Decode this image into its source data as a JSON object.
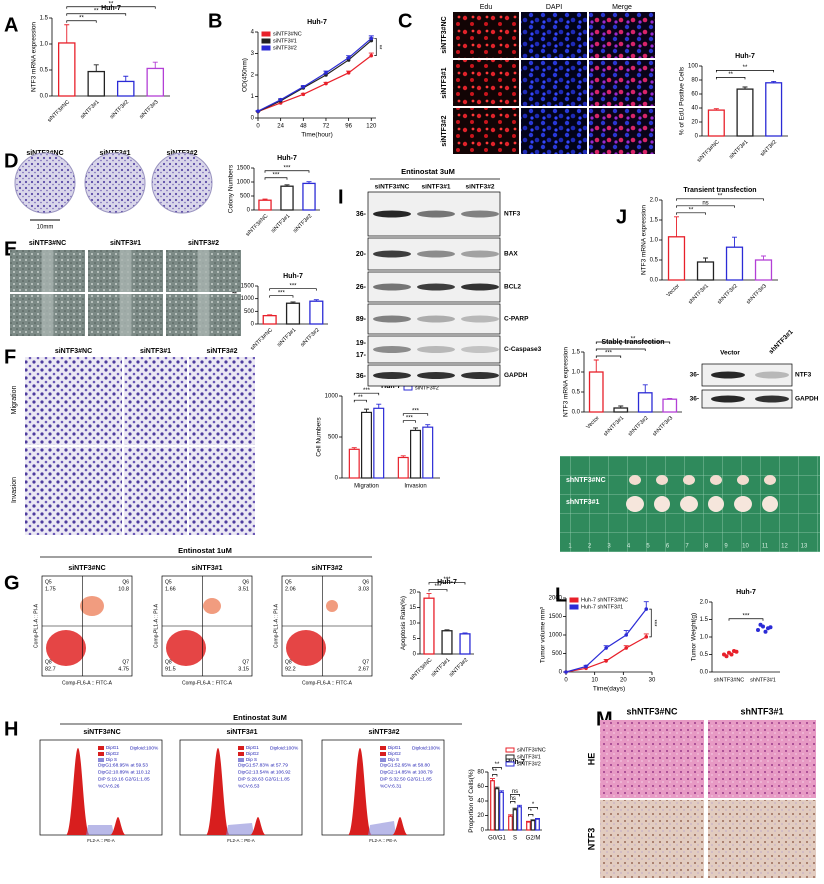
{
  "chart_data": [
    {
      "type": "bar",
      "title": "Huh-7",
      "y_label": "NTF3 mRNA expression",
      "categories": [
        "siNTF3#NC",
        "siNTF3#1",
        "siNTF3#2",
        "siNTF3#3"
      ],
      "values": [
        1.02,
        0.47,
        0.28,
        0.53
      ],
      "errors": [
        0.35,
        0.13,
        0.1,
        0.12
      ],
      "colors": [
        "#e8202a",
        "#222222",
        "#2b2bd6",
        "#b33fd6"
      ],
      "ylim": [
        0,
        1.5
      ],
      "yticks": [
        {
          "value": 0,
          "label": "0.0"
        },
        {
          "value": 0.5,
          "label": "0.5"
        },
        {
          "value": 1,
          "label": "1.0"
        },
        {
          "value": 1.5,
          "label": "1.5"
        }
      ],
      "annotations": [
        "**",
        "**",
        "**"
      ]
    },
    {
      "type": "line",
      "title": "Huh-7",
      "y_label": "OD(450nm)",
      "x_label": "Time(hour)",
      "x": [
        0,
        24,
        48,
        72,
        96,
        120
      ],
      "xlim": [
        0,
        125
      ],
      "xticks": [
        0,
        24,
        48,
        72,
        96,
        120
      ],
      "ylim": [
        0,
        4
      ],
      "yticks": [
        0,
        1,
        2,
        3,
        4
      ],
      "legend": "upper left",
      "series": [
        {
          "name": "siNTF3#NC",
          "color": "#e8202a",
          "values": [
            0.3,
            0.7,
            1.1,
            1.6,
            2.1,
            2.9
          ],
          "errors": [
            0.02,
            0.04,
            0.05,
            0.06,
            0.08,
            0.12
          ]
        },
        {
          "name": "siNTF3#1",
          "color": "#222222",
          "values": [
            0.3,
            0.8,
            1.4,
            2.0,
            2.7,
            3.6
          ],
          "errors": [
            0.02,
            0.05,
            0.06,
            0.08,
            0.1,
            0.12
          ]
        },
        {
          "name": "siNTF3#2",
          "color": "#2b2bd6",
          "values": [
            0.32,
            0.85,
            1.45,
            2.1,
            2.8,
            3.7
          ],
          "errors": [
            0.02,
            0.05,
            0.06,
            0.08,
            0.1,
            0.12
          ]
        }
      ],
      "annotations": [
        "**"
      ]
    },
    {
      "type": "bar",
      "title": "Huh-7",
      "y_label": "% of EdU Positive Cells",
      "categories": [
        "siNTF3#NC",
        "siNTF3#1",
        "siNT3#2"
      ],
      "values": [
        37,
        67,
        76
      ],
      "errors": [
        2,
        3,
        2
      ],
      "colors": [
        "#e8202a",
        "#222222",
        "#2b2bd6"
      ],
      "ylim": [
        0,
        100
      ],
      "yticks": [
        0,
        20,
        40,
        60,
        80,
        100
      ],
      "annotations": [
        "**",
        "**"
      ]
    },
    {
      "type": "bar",
      "title": "Huh-7",
      "y_label": "Colony Numbers",
      "categories": [
        "siNTF3#NC",
        "siNTF3#1",
        "siNTF3#2"
      ],
      "values": [
        350,
        850,
        950
      ],
      "errors": [
        40,
        50,
        60
      ],
      "colors": [
        "#e8202a",
        "#222222",
        "#2b2bd6"
      ],
      "ylim": [
        0,
        1500
      ],
      "yticks": [
        0,
        500,
        1000,
        1500
      ],
      "annotations": [
        "***",
        "***"
      ]
    },
    {
      "type": "bar",
      "title": "Huh-7",
      "y_label": "Colony Numbers",
      "categories": [
        "siNTF3#NC",
        "siNTF3#1",
        "siNTF3#2"
      ],
      "values": [
        330,
        820,
        900
      ],
      "errors": [
        30,
        50,
        60
      ],
      "colors": [
        "#e8202a",
        "#222222",
        "#2b2bd6"
      ],
      "ylim": [
        0,
        1500
      ],
      "yticks": [
        0,
        500,
        1000,
        1500
      ],
      "annotations": [
        "***",
        "***"
      ]
    },
    {
      "type": "bar",
      "title": "Huh-7",
      "y_label": "Cell Numbers",
      "categories": [
        "Migration",
        "Invasion"
      ],
      "legend": "upper right",
      "series": [
        {
          "name": "siNTF3#NC",
          "color": "#e8202a",
          "values": [
            350,
            250
          ],
          "errors": [
            20,
            20
          ]
        },
        {
          "name": "siNTF3#1",
          "color": "#222222",
          "values": [
            800,
            580
          ],
          "errors": [
            40,
            30
          ]
        },
        {
          "name": "siNTF3#2",
          "color": "#2b2bd6",
          "values": [
            850,
            620
          ],
          "errors": [
            50,
            30
          ]
        }
      ],
      "ylim": [
        0,
        1000
      ],
      "yticks": [
        0,
        500,
        1000
      ],
      "annotations": [
        [
          "**",
          "***"
        ],
        [
          "***",
          "***"
        ]
      ]
    },
    {
      "type": "bar",
      "title": "Huh-7",
      "y_label": "Apoptosis Rate(%)",
      "categories": [
        "siNTF3#NC",
        "siNTF3#1",
        "siNTF3#2"
      ],
      "values": [
        18,
        7.5,
        6.5
      ],
      "errors": [
        1.5,
        0.3,
        0.3
      ],
      "colors": [
        "#e8202a",
        "#222222",
        "#2b2bd6"
      ],
      "ylim": [
        0,
        20
      ],
      "yticks": [
        0,
        5,
        10,
        15,
        20
      ],
      "annotations": [
        "***",
        "***"
      ]
    },
    {
      "type": "bar",
      "title": "Huh-7",
      "y_label": "Proportion of Cells(%)",
      "categories": [
        "G0/G1",
        "S",
        "G2/M"
      ],
      "legend": "upper right",
      "series": [
        {
          "name": "siNTF3#NC",
          "color": "#e8202a",
          "values": [
            68,
            19,
            11
          ],
          "errors": [
            3,
            2,
            1
          ]
        },
        {
          "name": "siNTF3#1",
          "color": "#222222",
          "values": [
            57,
            28,
            13
          ],
          "errors": [
            2,
            2,
            1
          ]
        },
        {
          "name": "siNTF3#2",
          "color": "#2b2bd6",
          "values": [
            52,
            32,
            15
          ],
          "errors": [
            2,
            2,
            1
          ]
        }
      ],
      "ylim": [
        0,
        80
      ],
      "yticks": [
        0,
        20,
        40,
        60,
        80
      ],
      "annotations": [
        [
          "**",
          "**"
        ],
        [
          "ns",
          "ns"
        ],
        [
          "*",
          "*"
        ]
      ]
    },
    {
      "type": "bar",
      "title": "Transient transfection",
      "y_label": "NTF3 mRNA expression",
      "categories": [
        "Vector",
        "shNTF3#1",
        "shNTF3#2",
        "shNTF3#3"
      ],
      "values": [
        1.08,
        0.45,
        0.82,
        0.5
      ],
      "errors": [
        0.5,
        0.1,
        0.25,
        0.1
      ],
      "colors": [
        "#e8202a",
        "#222222",
        "#2b2bd6",
        "#b33fd6"
      ],
      "ylim": [
        0,
        2
      ],
      "yticks": [
        {
          "value": 0,
          "label": "0.0"
        },
        {
          "value": 0.5,
          "label": "0.5"
        },
        {
          "value": 1,
          "label": "1.0"
        },
        {
          "value": 1.5,
          "label": "1.5"
        },
        {
          "value": 2,
          "label": "2.0"
        }
      ],
      "annotations": [
        "**",
        "ns",
        "**"
      ]
    },
    {
      "type": "bar",
      "title": "Stable transfection",
      "y_label": "NTF3 mRNA expression",
      "categories": [
        "Vector",
        "shNTF3#1",
        "shNTF3#2",
        "shNTF3#3"
      ],
      "values": [
        1.0,
        0.1,
        0.48,
        0.32
      ],
      "errors": [
        0.3,
        0.05,
        0.2,
        0.02
      ],
      "colors": [
        "#e8202a",
        "#222222",
        "#2b2bd6",
        "#b33fd6"
      ],
      "ylim": [
        0,
        1.5
      ],
      "yticks": [
        {
          "value": 0,
          "label": "0.0"
        },
        {
          "value": 0.5,
          "label": "0.5"
        },
        {
          "value": 1,
          "label": "1.0"
        },
        {
          "value": 1.5,
          "label": "1.5"
        }
      ],
      "annotations": [
        "***",
        "*",
        "**"
      ]
    },
    {
      "type": "line",
      "y_label": "Tumor volume mm³",
      "x_label": "Time(days)",
      "x": [
        0,
        7,
        14,
        21,
        28
      ],
      "xlim": [
        0,
        30
      ],
      "xticks": [
        0,
        10,
        20,
        30
      ],
      "ylim": [
        0,
        2000
      ],
      "yticks": [
        0,
        500,
        1000,
        1500,
        2000
      ],
      "legend": "upper left",
      "series": [
        {
          "name": "Huh-7 shNTF3#NC",
          "color": "#e8202a",
          "values": [
            0,
            100,
            300,
            650,
            950
          ],
          "errors": [
            0,
            20,
            40,
            60,
            80
          ]
        },
        {
          "name": "Huh-7 shNTF3#1",
          "color": "#2b2bd6",
          "values": [
            0,
            150,
            650,
            1000,
            1700
          ],
          "errors": [
            0,
            30,
            60,
            120,
            200
          ]
        }
      ],
      "annotations": [
        "***"
      ]
    },
    {
      "type": "dot",
      "title": "Huh-7",
      "y_label": "Tumor Weight(g)",
      "categories": [
        "shNTF3#NC",
        "shNTF3#1"
      ],
      "values": [
        [
          0.5,
          0.55,
          0.6,
          0.45,
          0.5,
          0.58
        ],
        [
          1.2,
          1.3,
          1.25,
          1.35,
          1.15,
          1.28
        ]
      ],
      "colors": [
        "#e8202a",
        "#2b2bd6"
      ],
      "ylim": [
        0,
        2
      ],
      "yticks": [
        {
          "value": 0,
          "label": "0.0"
        },
        {
          "value": 0.5,
          "label": "0.5"
        },
        {
          "value": 1,
          "label": "1.0"
        },
        {
          "value": 1.5,
          "label": "1.5"
        },
        {
          "value": 2,
          "label": "2.0"
        }
      ],
      "annotations": [
        "***"
      ]
    }
  ],
  "panel_labels": [
    "A",
    "B",
    "C",
    "D",
    "E",
    "F",
    "G",
    "H",
    "I",
    "J",
    "K",
    "L",
    "M"
  ],
  "c_panel": {
    "columns": [
      "Edu",
      "DAPI",
      "Merge"
    ],
    "rows": [
      "siNTF3#NC",
      "siNTF3#1",
      "siNTF3#2"
    ]
  },
  "d_panel": {
    "columns": [
      "siNTF3#NC",
      "siNTF3#1",
      "siNTF3#2"
    ],
    "scale": "10mm"
  },
  "e_panel": {
    "columns": [
      "siNTF3#NC",
      "siNTF3#1",
      "siNTF3#2"
    ]
  },
  "f_panel": {
    "columns": [
      "siNTF3#NC",
      "siNTF3#1",
      "siNTF3#2"
    ],
    "rows": [
      "Migration",
      "Invasion"
    ]
  },
  "g_panel": {
    "treatment": "Entinostat  1uM",
    "columns": [
      "siNTF3#NC",
      "siNTF3#1",
      "siNTF3#2"
    ],
    "quadrants": [
      "Q5",
      "Q6",
      "Q8",
      "Q7"
    ],
    "percentages": [
      [
        1.75,
        10.8,
        82.7,
        4.75
      ],
      [
        1.66,
        3.51,
        91.5,
        3.15
      ],
      [
        2.06,
        3.03,
        92.2,
        2.67
      ]
    ],
    "x_label": "Comp-FL6-A :: FITC-A",
    "y_label": "Comp-PL1-A :: PI-A"
  },
  "h_panel": {
    "treatment": "Entinostat  3uM",
    "columns": [
      "siNTF3#NC",
      "siNTF3#1",
      "siNTF3#2"
    ],
    "legend": [
      "DipG1",
      "DipG2",
      "Dip S"
    ],
    "x_label": "FL2-A :: PE-A",
    "stats": [
      [
        "Diploid:100%",
        "DipG1:68.95% at 59.53",
        "DipG2:10.89% at 110.12",
        "DiP S:19.16  G2/G1:1.85",
        "%CV:6.26"
      ],
      [
        "Diploid:100%",
        "DipG1:57.83% at 57.79",
        "DipG2:13.54% at 106.92",
        "DiP S:28.63  G2/G1:1.85",
        "%CV:6.53"
      ],
      [
        "Diploid:100%",
        "DipG1:52.65% at 58.80",
        "DipG2:14.85% at 108.79",
        "DiP S:32.50  G2/G1:1.85",
        "%CV:6.31"
      ]
    ]
  },
  "i_panel": {
    "treatment": "Entinostat  3uM",
    "lanes": [
      "siNTF3#NC",
      "siNTF3#1",
      "siNTF3#2"
    ],
    "markers": [
      "36-",
      "20-",
      "26-",
      "89-",
      "19-",
      "17-",
      "36-"
    ],
    "proteins": [
      "NTF3",
      "BAX",
      "BCL2",
      "C-PARP",
      "C-Caspase3",
      "GAPDH"
    ]
  },
  "j_blot": {
    "lanes": [
      "Vector",
      "shNTF3#1"
    ],
    "markers": [
      "36-",
      "36-"
    ],
    "proteins": [
      "NTF3",
      "GAPDH"
    ]
  },
  "k_panel": {
    "rows": [
      "shNTF3#NC",
      "shNTF3#1"
    ],
    "ruler": [
      1,
      2,
      3,
      4,
      5,
      6,
      7,
      8,
      9,
      10,
      11,
      12,
      13
    ]
  },
  "m_panel": {
    "columns": [
      "shNTF3#NC",
      "shNTF3#1"
    ],
    "rows": [
      "HE",
      "NTF3"
    ]
  }
}
